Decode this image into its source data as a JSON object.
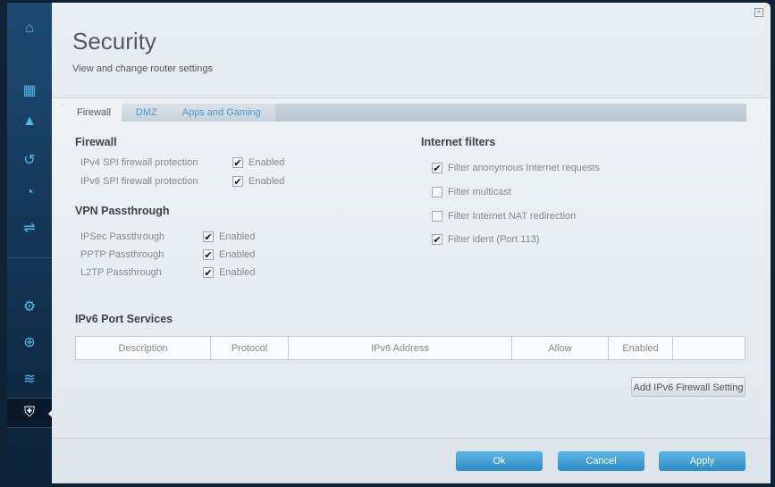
{
  "sidebar": {
    "items": [
      {
        "icon": "router-icon"
      },
      {
        "icon": "devices-icon"
      },
      {
        "icon": "alert-icon"
      },
      {
        "icon": "parental-icon"
      },
      {
        "icon": "speed-icon"
      },
      {
        "icon": "usb-icon"
      },
      {
        "icon": "connectivity-gear-icon"
      },
      {
        "icon": "troubleshooting-icon"
      },
      {
        "icon": "wireless-icon"
      },
      {
        "icon": "security-shield-icon",
        "selected": true
      }
    ]
  },
  "header": {
    "title": "Security",
    "subtitle": "View and change router settings"
  },
  "tabs": [
    {
      "label": "Firewall",
      "active": true
    },
    {
      "label": "DMZ"
    },
    {
      "label": "Apps and Gaming"
    }
  ],
  "firewall": {
    "title": "Firewall",
    "items": [
      {
        "label": "IPv4 SPI firewall protection",
        "value": "Enabled",
        "checked": true
      },
      {
        "label": "IPv6 SPI firewall protection",
        "value": "Enabled",
        "checked": true
      }
    ]
  },
  "vpn": {
    "title": "VPN Passthrough",
    "items": [
      {
        "label": "IPSec Passthrough",
        "value": "Enabled",
        "checked": true
      },
      {
        "label": "PPTP Passthrough",
        "value": "Enabled",
        "checked": true
      },
      {
        "label": "L2TP Passthrough",
        "value": "Enabled",
        "checked": true
      }
    ]
  },
  "filters": {
    "title": "Internet filters",
    "items": [
      {
        "label": "Filter anonymous Internet requests",
        "checked": true
      },
      {
        "label": "Filter multicast",
        "checked": false
      },
      {
        "label": "Filter Internet NAT redirection",
        "checked": false
      },
      {
        "label": "Filter ident (Port 113)",
        "checked": true
      }
    ]
  },
  "ipv6": {
    "title": "IPv6 Port Services",
    "columns": [
      "Description",
      "Protocol",
      "IPv6 Address",
      "Allow",
      "Enabled",
      ""
    ],
    "add_label": "Add IPv6 Firewall Setting"
  },
  "footer": {
    "ok": "Ok",
    "cancel": "Cancel",
    "apply": "Apply"
  },
  "close_icon": "close-icon"
}
